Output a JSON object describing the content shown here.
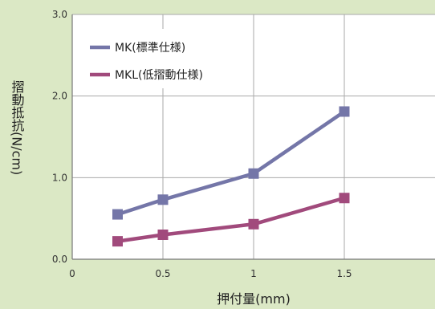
{
  "chart_data": {
    "type": "line",
    "xlabel": "押付量(mm)",
    "ylabel": "摺動抵抗(N/cm)",
    "xlim": [
      0,
      2
    ],
    "ylim": [
      0,
      3
    ],
    "x_ticks": [
      0,
      0.5,
      1,
      1.5
    ],
    "x_tick_labels": [
      "0",
      "0.5",
      "1",
      "1.5"
    ],
    "y_ticks": [
      0,
      1,
      2,
      3
    ],
    "y_tick_labels": [
      "0.0",
      "1.0",
      "2.0",
      "3.0"
    ],
    "grid": true,
    "legend_position": "top-left",
    "series": [
      {
        "name": "MK(標準仕様)",
        "color": "#7476a8",
        "x": [
          0.25,
          0.5,
          1,
          1.5
        ],
        "y": [
          0.55,
          0.73,
          1.05,
          1.81
        ]
      },
      {
        "name": "MKL(低摺動仕様)",
        "color": "#a14a7c",
        "x": [
          0.25,
          0.5,
          1,
          1.5
        ],
        "y": [
          0.22,
          0.3,
          0.43,
          0.75
        ]
      }
    ]
  },
  "colors": {
    "page_background": "#dbe8c5",
    "plot_background": "#ffffff",
    "grid": "#aaaaaa",
    "axis": "#777777"
  }
}
